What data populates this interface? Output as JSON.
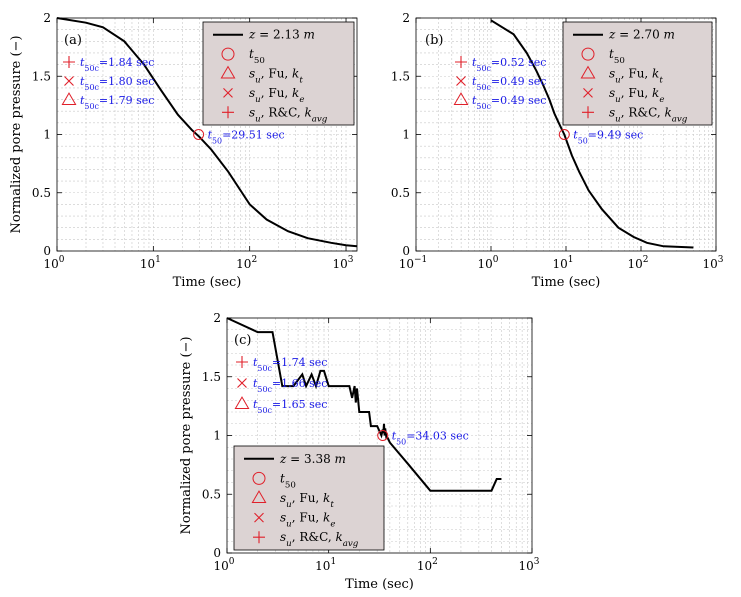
{
  "colors": {
    "curve": "#000000",
    "marker": "#e0202a",
    "annotation": "#1a1ae6",
    "legend_bg": "#dcd3d3"
  },
  "chart_data": [
    {
      "type": "line",
      "panel_label": "(a)",
      "xscale": "log",
      "xlim": [
        1,
        1300
      ],
      "ylim": [
        0,
        2
      ],
      "xlabel": "Time (sec)",
      "ylabel": "Normalized pore pressure (−)",
      "xticks": [
        1,
        10,
        100,
        1000
      ],
      "xtick_labels": [
        "10",
        "10",
        "10",
        "10"
      ],
      "xtick_exps": [
        "0",
        "1",
        "2",
        "3"
      ],
      "yticks": [
        0,
        0.5,
        1,
        1.5,
        2
      ],
      "ytick_labels": [
        "0",
        "0.5",
        "1",
        "1.5",
        "2"
      ],
      "series": [
        {
          "name": "z = 2.13 m",
          "x": [
            1,
            2,
            3,
            5,
            8,
            12,
            18,
            25,
            30,
            40,
            60,
            100,
            150,
            250,
            400,
            700,
            1000,
            1300
          ],
          "y": [
            2.0,
            1.96,
            1.92,
            1.8,
            1.6,
            1.38,
            1.17,
            1.04,
            0.98,
            0.87,
            0.68,
            0.4,
            0.27,
            0.17,
            0.11,
            0.07,
            0.05,
            0.04
          ]
        }
      ],
      "t50": {
        "x": 29.51,
        "y": 1.0,
        "label": "t50=29.51 sec"
      },
      "annotations": [
        "t50c=1.84 sec",
        "t50c=1.80 sec",
        "t50c=1.79 sec"
      ],
      "legend": {
        "placement": "top-right",
        "curve_label": "z = 2.13 m",
        "items": [
          "t50",
          "su, Fu, kt",
          "su, Fu, ke",
          "su, R&C, kavg"
        ]
      }
    },
    {
      "type": "line",
      "panel_label": "(b)",
      "xscale": "log",
      "xlim": [
        0.1,
        1000
      ],
      "ylim": [
        0,
        2
      ],
      "xlabel": "Time (sec)",
      "ylabel": "",
      "xticks": [
        0.1,
        1,
        10,
        100,
        1000
      ],
      "xtick_labels": [
        "10",
        "10",
        "10",
        "10",
        "10"
      ],
      "xtick_exps": [
        "−1",
        "0",
        "1",
        "2",
        "3"
      ],
      "yticks": [
        0,
        0.5,
        1,
        1.5,
        2
      ],
      "ytick_labels": [
        "0",
        "0.5",
        "1",
        "1.5",
        "2"
      ],
      "series": [
        {
          "name": "z = 2.70 m",
          "x": [
            1,
            2,
            3,
            4,
            5,
            6,
            7,
            8,
            9.49,
            12,
            15,
            20,
            30,
            50,
            80,
            120,
            200,
            500
          ],
          "y": [
            1.98,
            1.86,
            1.7,
            1.55,
            1.42,
            1.3,
            1.18,
            1.1,
            1.0,
            0.82,
            0.68,
            0.52,
            0.36,
            0.2,
            0.12,
            0.07,
            0.04,
            0.03
          ]
        }
      ],
      "t50": {
        "x": 9.49,
        "y": 1.0,
        "label": "t50=9.49 sec"
      },
      "annotations": [
        "t50c=0.52 sec",
        "t50c=0.49 sec",
        "t50c=0.49 sec"
      ],
      "legend": {
        "placement": "top-right",
        "curve_label": "z = 2.70 m",
        "items": [
          "t50",
          "su, Fu, kt",
          "su, Fu, ke",
          "su, R&C, kavg"
        ]
      }
    },
    {
      "type": "line",
      "panel_label": "(c)",
      "xscale": "log",
      "xlim": [
        1,
        1000
      ],
      "ylim": [
        0,
        2
      ],
      "xlabel": "Time (sec)",
      "ylabel": "Normalized pore pressure (−)",
      "xticks": [
        1,
        10,
        100,
        1000
      ],
      "xtick_labels": [
        "10",
        "10",
        "10",
        "10"
      ],
      "xtick_exps": [
        "0",
        "1",
        "2",
        "3"
      ],
      "yticks": [
        0,
        0.5,
        1,
        1.5,
        2
      ],
      "ytick_labels": [
        "0",
        "0.5",
        "1",
        "1.5",
        "2"
      ],
      "series": [
        {
          "name": "z = 3.38 m",
          "x": [
            1,
            2,
            2.8,
            3.5,
            4.5,
            5.5,
            6,
            6.8,
            7.5,
            8.3,
            9,
            10,
            11,
            13,
            16,
            17,
            18,
            18.5,
            19,
            20,
            21,
            25,
            26,
            27,
            30,
            33,
            34,
            34.5,
            35,
            35.5,
            36,
            37,
            38,
            40,
            60,
            100,
            200,
            400,
            450,
            500
          ],
          "y": [
            2.0,
            1.88,
            1.88,
            1.42,
            1.42,
            1.52,
            1.42,
            1.52,
            1.42,
            1.55,
            1.55,
            1.42,
            1.42,
            1.42,
            1.42,
            1.32,
            1.42,
            1.28,
            1.4,
            1.2,
            1.2,
            1.2,
            1.08,
            1.08,
            1.08,
            1.0,
            1.05,
            1.02,
            1.1,
            1.0,
            1.06,
            0.98,
            0.98,
            0.94,
            0.76,
            0.53,
            0.53,
            0.53,
            0.63,
            0.63
          ]
        }
      ],
      "t50": {
        "x": 34.03,
        "y": 1.0,
        "label": "t50=34.03 sec"
      },
      "annotations": [
        "t50c=1.74 sec",
        "t50c=1.66 sec",
        "t50c=1.65 sec"
      ],
      "legend": {
        "placement": "bottom-left",
        "curve_label": "z = 3.38 m",
        "items": [
          "t50",
          "su, Fu, kt",
          "su, Fu, ke",
          "su, R&C, kavg"
        ]
      }
    }
  ]
}
